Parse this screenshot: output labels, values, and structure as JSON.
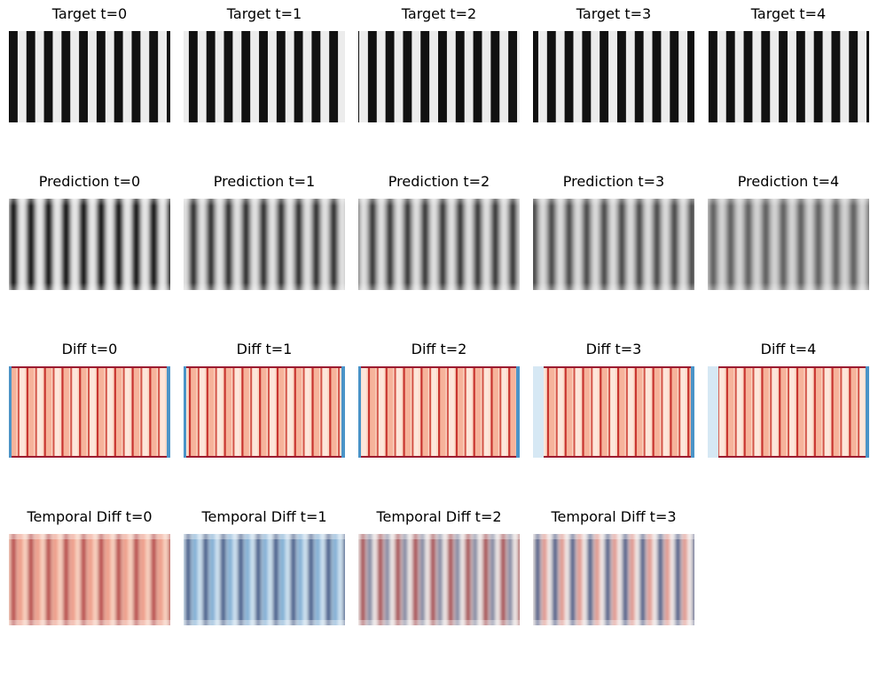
{
  "rows": [
    {
      "id": "target",
      "kind": "target",
      "panels": [
        {
          "title": "Target t=0",
          "phase": 0.0
        },
        {
          "title": "Target t=1",
          "phase": 0.3
        },
        {
          "title": "Target t=2",
          "phase": 0.55
        },
        {
          "title": "Target t=3",
          "phase": 0.8
        },
        {
          "title": "Target t=4",
          "phase": 0.05
        }
      ]
    },
    {
      "id": "prediction",
      "kind": "prediction",
      "panels": [
        {
          "title": "Prediction t=0",
          "phase": 0.0
        },
        {
          "title": "Prediction t=1",
          "phase": 0.3
        },
        {
          "title": "Prediction t=2",
          "phase": 0.55
        },
        {
          "title": "Prediction t=3",
          "phase": 0.8
        },
        {
          "title": "Prediction t=4",
          "phase": 0.05
        }
      ]
    },
    {
      "id": "diff",
      "kind": "diff",
      "panels": [
        {
          "title": "Diff t=0",
          "phase": 0.0
        },
        {
          "title": "Diff t=1",
          "phase": 0.3
        },
        {
          "title": "Diff t=2",
          "phase": 0.55
        },
        {
          "title": "Diff t=3",
          "phase": 0.8
        },
        {
          "title": "Diff t=4",
          "phase": 0.05
        }
      ]
    },
    {
      "id": "temporal-diff",
      "kind": "temporal",
      "panels": [
        {
          "title": "Temporal Diff t=0",
          "polarity": "red"
        },
        {
          "title": "Temporal Diff t=1",
          "polarity": "blue"
        },
        {
          "title": "Temporal Diff t=2",
          "polarity": "mixed"
        },
        {
          "title": "Temporal Diff t=3",
          "polarity": "mixed-blue"
        }
      ]
    }
  ],
  "colors": {
    "stripe_dark": "#111111",
    "stripe_light": "#ececec",
    "red_strong": "#8b0a1f",
    "red_mid": "#e8806a",
    "red_light": "#fbd8c6",
    "blue_strong": "#073b7a",
    "blue_mid": "#4a94c8",
    "blue_light": "#d6e8f4",
    "neutral": "#f7f4f2"
  }
}
